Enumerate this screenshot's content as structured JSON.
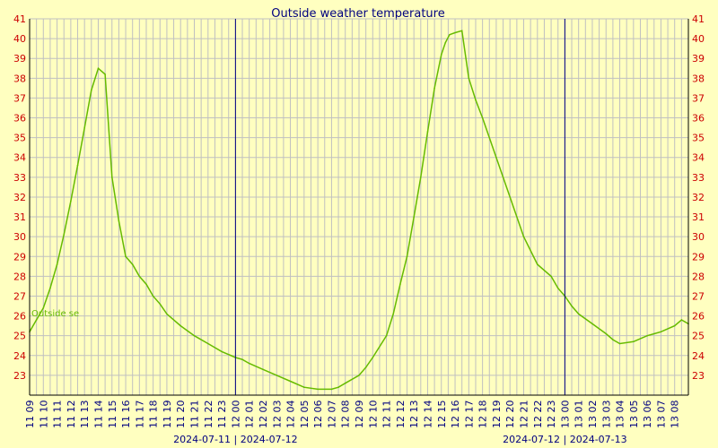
{
  "chart_data": {
    "type": "line",
    "title": "Outside weather temperature",
    "series_label": "Outside se",
    "ylim": [
      22,
      41
    ],
    "y_ticks": [
      23,
      24,
      25,
      26,
      27,
      28,
      29,
      30,
      31,
      32,
      33,
      34,
      35,
      36,
      37,
      38,
      39,
      40,
      41
    ],
    "x_ticks": [
      "11 09",
      "11 10",
      "11 11",
      "11 12",
      "11 13",
      "11 14",
      "11 15",
      "11 16",
      "11 17",
      "11 18",
      "11 19",
      "11 20",
      "11 21",
      "11 22",
      "11 23",
      "12 00",
      "12 01",
      "12 02",
      "12 03",
      "12 04",
      "12 05",
      "12 06",
      "12 07",
      "12 08",
      "12 09",
      "12 10",
      "12 11",
      "12 12",
      "12 13",
      "12 14",
      "12 15",
      "12 16",
      "12 17",
      "12 18",
      "12 19",
      "12 20",
      "12 21",
      "12 22",
      "12 23",
      "13 00",
      "13 01",
      "13 02",
      "13 03",
      "13 04",
      "13 05",
      "13 06",
      "13 07",
      "13 08"
    ],
    "date_labels": [
      {
        "text": "2024-07-11 | 2024-07-12",
        "at": "12 00"
      },
      {
        "text": "2024-07-12 | 2024-07-13",
        "at": "13 00"
      }
    ],
    "day_boundaries": [
      "12 00",
      "13 00"
    ],
    "series": [
      {
        "name": "Outside se",
        "color": "#66bb00",
        "x": [
          0,
          0.5,
          1,
          1.5,
          2,
          2.5,
          3,
          3.5,
          4,
          4.5,
          5,
          5.5,
          6,
          6.5,
          7,
          7.5,
          8,
          8.5,
          9,
          9.5,
          10,
          11,
          12,
          13,
          14,
          15,
          15.5,
          16,
          17,
          18,
          19,
          20,
          21,
          22,
          22.5,
          23,
          24,
          24.5,
          25,
          26,
          26.5,
          27,
          27.5,
          28,
          28.5,
          29,
          29.5,
          30,
          30.3,
          30.6,
          31,
          31.5,
          32,
          32.5,
          33,
          34,
          35,
          36,
          37,
          38,
          38.5,
          39,
          39.5,
          40,
          41,
          42,
          42.5,
          43,
          44,
          45,
          45.5,
          46,
          47,
          47.5,
          48
        ],
        "y": [
          25.2,
          25.8,
          26.4,
          27.4,
          28.6,
          30.1,
          31.8,
          33.6,
          35.5,
          37.4,
          38.5,
          38.2,
          33.0,
          30.8,
          29.0,
          28.6,
          28.0,
          27.6,
          27.0,
          26.6,
          26.1,
          25.5,
          25.0,
          24.6,
          24.2,
          23.9,
          23.8,
          23.6,
          23.3,
          23.0,
          22.7,
          22.4,
          22.3,
          22.3,
          22.4,
          22.6,
          23.0,
          23.4,
          23.9,
          25.0,
          26.1,
          27.6,
          29.0,
          31.0,
          33.0,
          35.3,
          37.5,
          39.2,
          39.8,
          40.2,
          40.3,
          40.4,
          38.0,
          36.9,
          36.0,
          34.0,
          32.0,
          30.0,
          28.6,
          28.0,
          27.4,
          27.0,
          26.5,
          26.1,
          25.6,
          25.1,
          24.8,
          24.6,
          24.7,
          25.0,
          25.1,
          25.2,
          25.5,
          25.8,
          25.6
        ]
      }
    ],
    "grid": true
  }
}
